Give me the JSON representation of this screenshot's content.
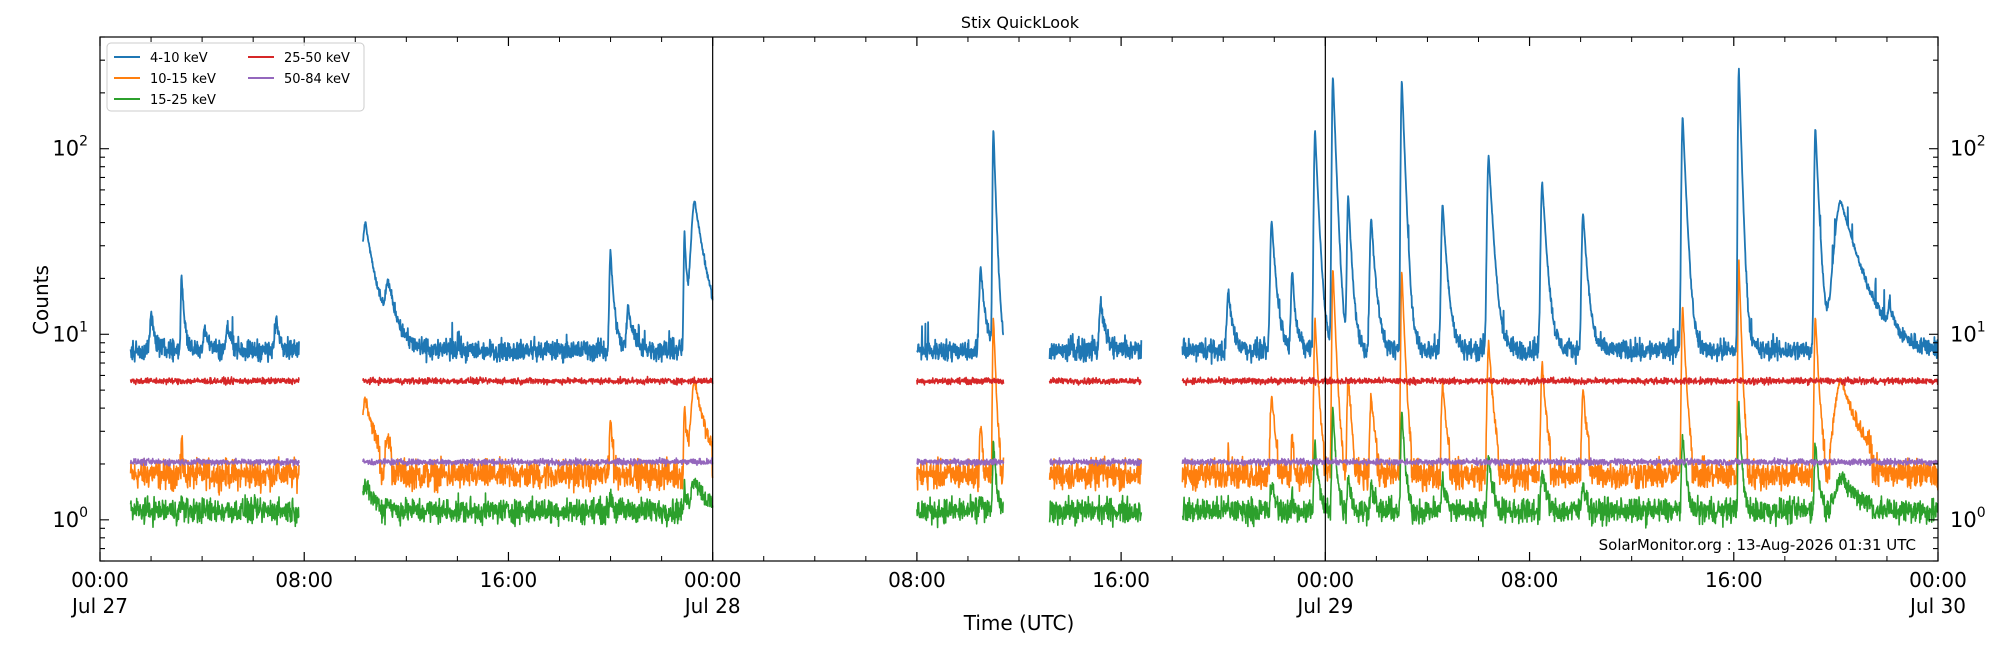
{
  "chart_data": {
    "type": "line",
    "title": "Stix QuickLook",
    "xlabel": "Time (UTC)",
    "ylabel": "Counts",
    "yscale": "log",
    "ylim": [
      0.6,
      400
    ],
    "xlim": [
      0,
      72
    ],
    "x_units": "hours since 2026-07-27 00:00 UTC",
    "x_ticks": [
      {
        "x": 0,
        "line1": "00:00",
        "line2": "Jul 27"
      },
      {
        "x": 8,
        "line1": "08:00",
        "line2": ""
      },
      {
        "x": 16,
        "line1": "16:00",
        "line2": ""
      },
      {
        "x": 24,
        "line1": "00:00",
        "line2": "Jul 28"
      },
      {
        "x": 32,
        "line1": "08:00",
        "line2": ""
      },
      {
        "x": 40,
        "line1": "16:00",
        "line2": ""
      },
      {
        "x": 48,
        "line1": "00:00",
        "line2": "Jul 29"
      },
      {
        "x": 56,
        "line1": "08:00",
        "line2": ""
      },
      {
        "x": 64,
        "line1": "16:00",
        "line2": ""
      },
      {
        "x": 72,
        "line1": "00:00",
        "line2": "Jul 30"
      }
    ],
    "y_tick_labels": [
      "10^0",
      "10^1",
      "10^2"
    ],
    "day_boundaries": [
      24,
      48
    ],
    "legend_position": "top-left",
    "legend_columns": 2,
    "watermark": "SolarMonitor.org : 13-Aug-2026 01:31 UTC",
    "data_segments": [
      [
        1.2,
        7.8
      ],
      [
        10.3,
        24.0
      ],
      [
        32.0,
        35.4
      ],
      [
        37.2,
        40.8
      ],
      [
        42.4,
        72.0
      ]
    ],
    "series": [
      {
        "name": "4-10 keV",
        "color": "#1f77b4",
        "baseline": 8.2,
        "noise": 0.05,
        "spike_scale": 1.0
      },
      {
        "name": "10-15 keV",
        "color": "#ff7f0e",
        "baseline": 1.75,
        "noise": 0.07,
        "spike_scale": 0.55
      },
      {
        "name": "15-25 keV",
        "color": "#2ca02c",
        "baseline": 1.12,
        "noise": 0.06,
        "spike_scale": 0.22
      },
      {
        "name": "25-50 keV",
        "color": "#d62728",
        "baseline": 5.6,
        "noise": 0.015,
        "spike_scale": 0.0
      },
      {
        "name": "50-84 keV",
        "color": "#9467bd",
        "baseline": 2.05,
        "noise": 0.015,
        "spike_scale": 0.0
      }
    ],
    "flares": [
      {
        "t": 2.0,
        "peak": 13,
        "w": 0.08
      },
      {
        "t": 3.2,
        "peak": 21,
        "w": 0.06
      },
      {
        "t": 4.1,
        "peak": 11,
        "w": 0.1
      },
      {
        "t": 5.0,
        "peak": 11,
        "w": 0.1
      },
      {
        "t": 6.9,
        "peak": 12,
        "w": 0.1
      },
      {
        "t": 10.4,
        "peak": 40,
        "w": 0.25
      },
      {
        "t": 11.3,
        "peak": 16,
        "w": 0.2
      },
      {
        "t": 20.0,
        "peak": 28,
        "w": 0.08
      },
      {
        "t": 20.7,
        "peak": 14,
        "w": 0.12
      },
      {
        "t": 22.9,
        "peak": 35,
        "w": 0.06
      },
      {
        "t": 23.3,
        "peak": 52,
        "w": 0.25
      },
      {
        "t": 34.5,
        "peak": 23,
        "w": 0.1
      },
      {
        "t": 35.0,
        "peak": 128,
        "w": 0.06
      },
      {
        "t": 39.2,
        "peak": 15,
        "w": 0.1
      },
      {
        "t": 44.2,
        "peak": 17,
        "w": 0.1
      },
      {
        "t": 45.9,
        "peak": 41,
        "w": 0.1
      },
      {
        "t": 46.7,
        "peak": 22,
        "w": 0.08
      },
      {
        "t": 47.6,
        "peak": 125,
        "w": 0.08
      },
      {
        "t": 48.3,
        "peak": 245,
        "w": 0.07
      },
      {
        "t": 48.9,
        "peak": 55,
        "w": 0.08
      },
      {
        "t": 49.8,
        "peak": 42,
        "w": 0.1
      },
      {
        "t": 51.0,
        "peak": 235,
        "w": 0.07
      },
      {
        "t": 52.6,
        "peak": 50,
        "w": 0.1
      },
      {
        "t": 54.4,
        "peak": 92,
        "w": 0.1
      },
      {
        "t": 56.5,
        "peak": 66,
        "w": 0.1
      },
      {
        "t": 58.1,
        "peak": 45,
        "w": 0.1
      },
      {
        "t": 62.0,
        "peak": 150,
        "w": 0.08
      },
      {
        "t": 64.2,
        "peak": 270,
        "w": 0.06
      },
      {
        "t": 67.2,
        "peak": 130,
        "w": 0.08
      },
      {
        "t": 68.2,
        "peak": 52,
        "w": 0.45
      },
      {
        "t": 70.1,
        "peak": 12,
        "w": 0.1
      }
    ]
  }
}
